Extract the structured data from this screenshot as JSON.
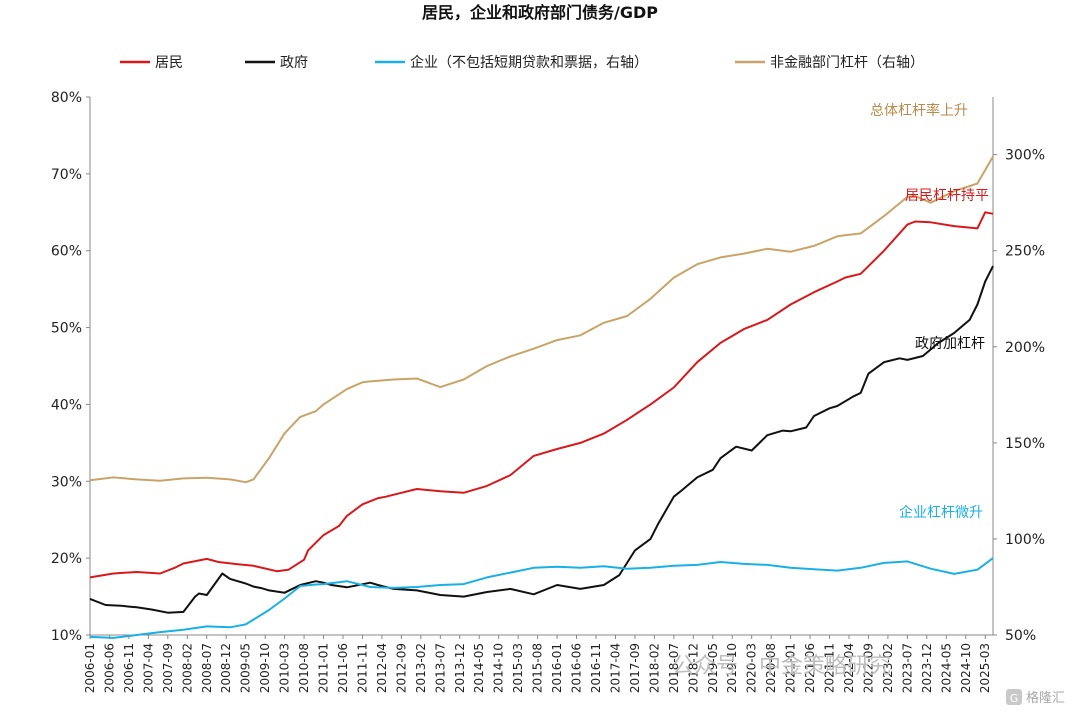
{
  "watermark_text": "公众号 · 中金策略研究",
  "corner_logo": "格隆汇",
  "chart_data": {
    "type": "line",
    "title": "居民，企业和政府部门债务/GDP",
    "y_left": {
      "ylim": [
        10,
        80
      ],
      "ticks": [
        "10%",
        "20%",
        "30%",
        "40%",
        "50%",
        "60%",
        "70%",
        "80%"
      ],
      "tick_values": [
        10,
        20,
        30,
        40,
        50,
        60,
        70,
        80
      ]
    },
    "y_right": {
      "ylim": [
        50,
        330
      ],
      "ticks": [
        "50%",
        "100%",
        "150%",
        "200%",
        "250%",
        "300%"
      ],
      "tick_values": [
        50,
        100,
        150,
        200,
        250,
        300
      ]
    },
    "x_labels": [
      "2006-01",
      "2006-06",
      "2006-11",
      "2007-04",
      "2007-09",
      "2008-02",
      "2008-07",
      "2008-12",
      "2009-05",
      "2009-10",
      "2010-03",
      "2010-08",
      "2011-01",
      "2011-06",
      "2011-11",
      "2012-04",
      "2012-09",
      "2013-02",
      "2013-07",
      "2013-12",
      "2014-05",
      "2014-10",
      "2015-03",
      "2015-08",
      "2016-01",
      "2016-06",
      "2016-11",
      "2017-04",
      "2017-09",
      "2018-02",
      "2018-07",
      "2018-12",
      "2019-05",
      "2019-10",
      "2020-03",
      "2020-08",
      "2021-01",
      "2021-06",
      "2021-11",
      "2022-04",
      "2022-09",
      "2023-02",
      "2023-07",
      "2023-12",
      "2024-05",
      "2024-10",
      "2025-03"
    ],
    "x_index_range": [
      0,
      232
    ],
    "series": [
      {
        "name": "居民",
        "axis": "left",
        "color": "#d7191c",
        "x": [
          0,
          6,
          12,
          18,
          22,
          24,
          30,
          33,
          38,
          42,
          48,
          51,
          55,
          56,
          60,
          64,
          66,
          70,
          74,
          76,
          80,
          84,
          90,
          96,
          102,
          108,
          114,
          120,
          126,
          132,
          138,
          144,
          150,
          156,
          162,
          168,
          174,
          180,
          186,
          192,
          194,
          198,
          204,
          210,
          212,
          216,
          222,
          228,
          230,
          232
        ],
        "values": [
          17.5,
          18.0,
          18.2,
          18.0,
          18.8,
          19.3,
          19.9,
          19.5,
          19.2,
          19.0,
          18.3,
          18.5,
          19.8,
          21.0,
          23.0,
          24.2,
          25.5,
          27.0,
          27.8,
          28.0,
          28.5,
          29.0,
          28.7,
          28.5,
          29.4,
          30.8,
          33.3,
          34.2,
          35.0,
          36.2,
          38.0,
          40.0,
          42.2,
          45.5,
          48.0,
          49.8,
          51.0,
          53.0,
          54.6,
          56.0,
          56.5,
          57.0,
          60.0,
          63.4,
          63.8,
          63.7,
          63.2,
          62.9,
          65.0,
          64.8
        ]
      },
      {
        "name": "政府",
        "axis": "left",
        "color": "#111111",
        "x": [
          0,
          4,
          8,
          10,
          12,
          16,
          20,
          24,
          27,
          28,
          30,
          34,
          36,
          40,
          42,
          44,
          46,
          50,
          54,
          58,
          60,
          62,
          66,
          68,
          72,
          74,
          78,
          84,
          90,
          96,
          102,
          108,
          114,
          120,
          126,
          132,
          136,
          140,
          144,
          146,
          150,
          152,
          156,
          160,
          162,
          166,
          170,
          174,
          178,
          180,
          184,
          186,
          190,
          192,
          196,
          198,
          200,
          204,
          208,
          210,
          214,
          218,
          222,
          226,
          228,
          230,
          232
        ],
        "values": [
          14.7,
          13.9,
          13.8,
          13.7,
          13.6,
          13.3,
          12.9,
          13.0,
          15.0,
          15.4,
          15.2,
          18.0,
          17.3,
          16.7,
          16.3,
          16.1,
          15.8,
          15.5,
          16.5,
          17.0,
          16.8,
          16.5,
          16.2,
          16.4,
          16.8,
          16.5,
          16.0,
          15.8,
          15.2,
          15.0,
          15.6,
          16.0,
          15.3,
          16.5,
          16.0,
          16.5,
          17.8,
          21.0,
          22.5,
          24.5,
          28.0,
          28.8,
          30.5,
          31.5,
          33.0,
          34.5,
          34.0,
          36.0,
          36.6,
          36.5,
          37.0,
          38.5,
          39.5,
          39.8,
          41.0,
          41.5,
          44.0,
          45.5,
          46.0,
          45.8,
          46.3,
          48.0,
          49.3,
          51.0,
          53.0,
          56.0,
          58.0
        ]
      },
      {
        "name": "企业（不包括短期贷款和票据，右轴）",
        "axis": "right",
        "color": "#1ab0e6",
        "x": [
          0,
          6,
          10,
          14,
          18,
          24,
          30,
          36,
          40,
          42,
          46,
          50,
          54,
          58,
          60,
          66,
          72,
          78,
          84,
          90,
          96,
          102,
          108,
          114,
          120,
          126,
          132,
          138,
          144,
          150,
          156,
          162,
          168,
          174,
          180,
          186,
          192,
          198,
          204,
          210,
          216,
          222,
          228,
          230,
          232
        ],
        "values": [
          49.0,
          48.5,
          49.5,
          50.5,
          51.5,
          52.7,
          54.5,
          54.0,
          55.5,
          58.0,
          63.0,
          69.0,
          75.5,
          76.3,
          76.5,
          78.0,
          75.0,
          74.5,
          75.0,
          76.0,
          76.5,
          80.0,
          82.5,
          85.0,
          85.5,
          85.0,
          85.8,
          84.5,
          85.0,
          86.0,
          86.5,
          88.0,
          87.0,
          86.5,
          85.0,
          84.2,
          83.5,
          85.0,
          87.5,
          88.3,
          84.5,
          81.8,
          84.0,
          87.0,
          90.0
        ]
      },
      {
        "name": "非金融部门杠杆（右轴）",
        "axis": "right",
        "color": "#c9a469",
        "x": [
          0,
          6,
          12,
          18,
          24,
          30,
          36,
          40,
          42,
          46,
          50,
          54,
          58,
          60,
          66,
          70,
          72,
          78,
          84,
          90,
          96,
          102,
          108,
          114,
          120,
          126,
          132,
          138,
          144,
          150,
          156,
          162,
          168,
          174,
          180,
          186,
          192,
          194,
          198,
          204,
          210,
          212,
          216,
          222,
          228,
          230,
          232
        ],
        "values": [
          130.5,
          132.0,
          131.0,
          130.3,
          131.5,
          131.8,
          131.0,
          129.5,
          131.0,
          142.0,
          155.0,
          163.5,
          166.5,
          170.0,
          178.0,
          181.5,
          182.0,
          183.0,
          183.5,
          179.0,
          183.0,
          190.0,
          195.0,
          199.0,
          203.5,
          206.0,
          212.5,
          216.0,
          225.0,
          236.0,
          243.0,
          246.5,
          248.5,
          251.0,
          249.5,
          252.5,
          257.5,
          258.0,
          259.0,
          268.0,
          278.0,
          278.5,
          275.0,
          281.0,
          285.0,
          292.0,
          299.0
        ]
      }
    ],
    "legend": [
      "居民",
      "政府",
      "企业（不包括短期贷款和票据，右轴）",
      "非金融部门杠杆（右轴）"
    ],
    "legend_placement": "top",
    "annotations": [
      {
        "text": "总体杠杆率上升",
        "color": "#b98a4b"
      },
      {
        "text": "居民杠杆持平",
        "color": "#d7191c"
      },
      {
        "text": "政府加杠杆",
        "color": "#111111"
      },
      {
        "text": "企业杠杆微升",
        "color": "#1ab0e6"
      }
    ]
  }
}
